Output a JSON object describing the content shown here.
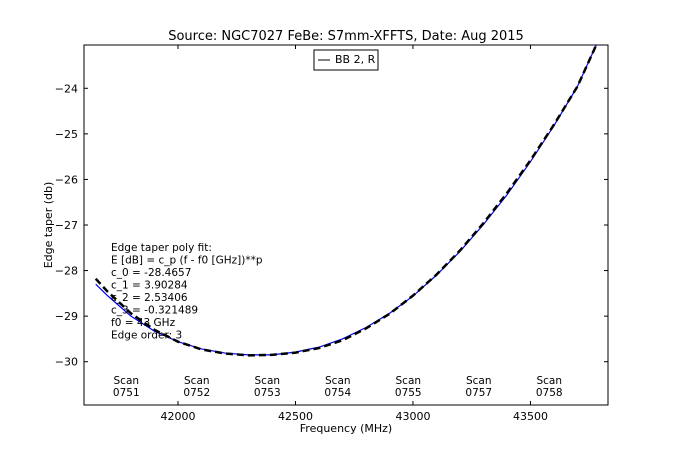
{
  "chart_data": {
    "type": "line",
    "title": "Source: NGC7027 FeBe: S7mm-XFFTS, Date: Aug 2015",
    "xlabel": "Frequency (MHz)",
    "ylabel": "Edge taper (db)",
    "xlim": [
      41600,
      43830
    ],
    "ylim": [
      -30.95,
      -23.05
    ],
    "x_ticks": [
      42000,
      42500,
      43000,
      43500
    ],
    "y_ticks": [
      -30,
      -29,
      -28,
      -27,
      -26,
      -25,
      -24
    ],
    "grid": false,
    "legend": {
      "placement": "top-center",
      "entries": [
        "BB 2, R"
      ]
    },
    "series": [
      {
        "name": "BB 2, R",
        "style": "solid",
        "color": "#0000ff",
        "x": [
          41650,
          41700,
          41800,
          41900,
          42000,
          42100,
          42200,
          42300,
          42400,
          42500,
          42600,
          42700,
          42800,
          42900,
          43000,
          43100,
          43200,
          43300,
          43400,
          43500,
          43600,
          43700,
          43780
        ],
        "y": [
          -28.3,
          -28.55,
          -29.0,
          -29.33,
          -29.56,
          -29.72,
          -29.81,
          -29.85,
          -29.85,
          -29.79,
          -29.68,
          -29.5,
          -29.25,
          -28.94,
          -28.56,
          -28.1,
          -27.58,
          -26.99,
          -26.34,
          -25.61,
          -24.82,
          -23.96,
          -23.05
        ]
      },
      {
        "name": "",
        "style": "dashed",
        "color": "#000000",
        "x": [
          41650,
          41700,
          41800,
          41900,
          42000,
          42100,
          42200,
          42300,
          42400,
          42500,
          42600,
          42700,
          42800,
          42900,
          43000,
          43100,
          43200,
          43300,
          43400,
          43500,
          43600,
          43700,
          43780
        ],
        "y": [
          -28.18,
          -28.46,
          -28.94,
          -29.3,
          -29.56,
          -29.73,
          -29.82,
          -29.86,
          -29.85,
          -29.8,
          -29.7,
          -29.53,
          -29.27,
          -28.95,
          -28.55,
          -28.09,
          -27.56,
          -26.96,
          -26.3,
          -25.58,
          -24.8,
          -23.96,
          -23.05
        ]
      }
    ],
    "annotation": {
      "lines": [
        "Edge taper poly fit:",
        "E [dB] = c_p (f - f0 [GHz])**p",
        "c_0 = -28.4657",
        "c_1 = 3.90284",
        "c_2 = 2.53406",
        "c_3 = -0.321489",
        "f0 = 43 GHz",
        "Edge order: 3"
      ]
    },
    "scan_labels": [
      {
        "line1": "Scan",
        "line2": "0751",
        "x": 41780
      },
      {
        "line1": "Scan",
        "line2": "0752",
        "x": 42080
      },
      {
        "line1": "Scan",
        "line2": "0753",
        "x": 42380
      },
      {
        "line1": "Scan",
        "line2": "0754",
        "x": 42680
      },
      {
        "line1": "Scan",
        "line2": "0755",
        "x": 42980
      },
      {
        "line1": "Scan",
        "line2": "0757",
        "x": 43280
      },
      {
        "line1": "Scan",
        "line2": "0758",
        "x": 43580
      }
    ]
  }
}
